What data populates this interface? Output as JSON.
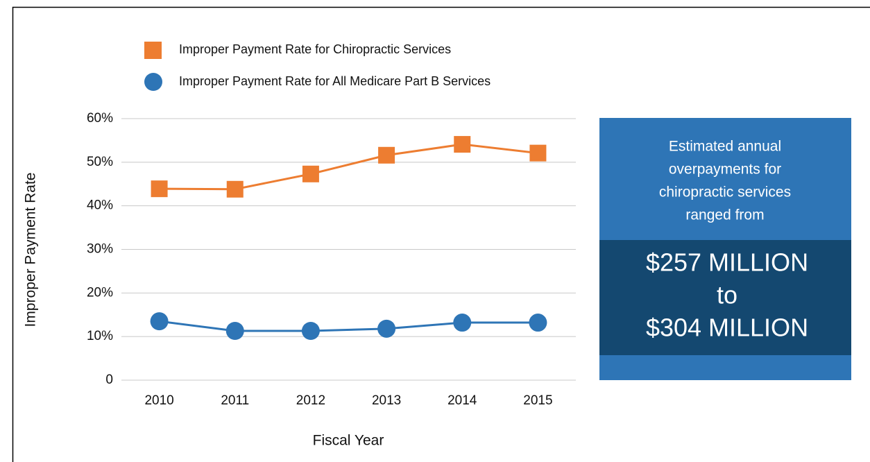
{
  "chart_data": {
    "type": "line",
    "categories": [
      "2010",
      "2011",
      "2012",
      "2013",
      "2014",
      "2015"
    ],
    "series": [
      {
        "name": "Improper Payment Rate for Chiropractic Services",
        "color": "#ed7d31",
        "marker": "square",
        "values": [
          43.9,
          43.8,
          47.3,
          51.6,
          54.1,
          52.1
        ]
      },
      {
        "name": "Improper Payment Rate for All Medicare Part B Services",
        "color": "#2e75b6",
        "marker": "circle",
        "values": [
          13.5,
          11.3,
          11.3,
          11.8,
          13.2,
          13.2
        ]
      }
    ],
    "ylim": [
      0,
      60
    ],
    "yticks": [
      0,
      {
        "value": 10,
        "label": "10%"
      },
      {
        "value": 20,
        "label": "20%"
      },
      {
        "value": 30,
        "label": "30%"
      },
      {
        "value": 40,
        "label": "40%"
      },
      {
        "value": 50,
        "label": "50%"
      },
      {
        "value": 60,
        "label": "60%"
      }
    ],
    "ylabel": "Improper Payment Rate",
    "xlabel": "Fiscal Year",
    "grid": true,
    "legend": "top",
    "callout": {
      "text_lines": [
        "Estimated annual",
        "overpayments for",
        "chiropractic services",
        "ranged from"
      ],
      "amount_lines": [
        "$257 MILLION",
        "to",
        "$304 MILLION"
      ]
    }
  }
}
